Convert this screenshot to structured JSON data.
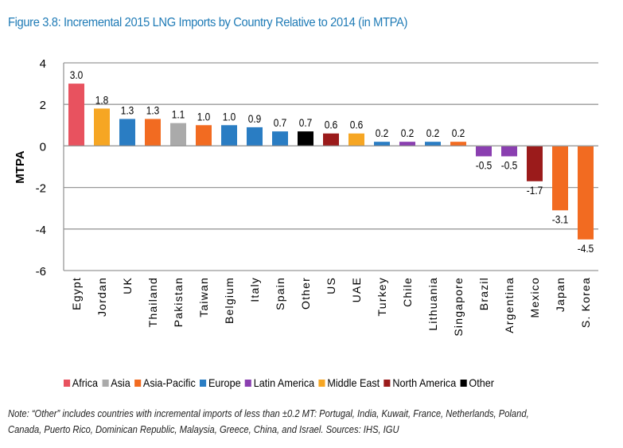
{
  "chart_data": {
    "type": "bar",
    "title": "Figure 3.8: Incremental 2015 LNG Imports by Country Relative to 2014 (in MTPA)",
    "ylabel": "MTPA",
    "ylim": [
      -6,
      4
    ],
    "yticks": [
      "4",
      "2",
      "0",
      "-2",
      "-4",
      "-6"
    ],
    "grid": true,
    "legend_position": "bottom",
    "categories": [
      "Egypt",
      "Jordan",
      "UK",
      "Thailand",
      "Pakistan",
      "Taiwan",
      "Belgium",
      "Italy",
      "Spain",
      "Other",
      "US",
      "UAE",
      "Turkey",
      "Chile",
      "Lithuania",
      "Singapore",
      "Brazil",
      "Argentina",
      "Mexico",
      "Japan",
      "S. Korea"
    ],
    "values": [
      3.0,
      1.8,
      1.3,
      1.3,
      1.1,
      1.0,
      1.0,
      0.9,
      0.7,
      0.7,
      0.6,
      0.6,
      0.2,
      0.2,
      0.2,
      0.2,
      -0.5,
      -0.5,
      -1.7,
      -3.1,
      -4.5
    ],
    "value_labels": [
      "3.0",
      "1.8",
      "1.3",
      "1.3",
      "1.1",
      "1.0",
      "1.0",
      "0.9",
      "0.7",
      "0.7",
      "0.6",
      "0.6",
      "0.2",
      "0.2",
      "0.2",
      "0.2",
      "-0.5",
      "-0.5",
      "-1.7",
      "-3.1",
      "-4.5"
    ],
    "regions": [
      "Africa",
      "Middle East",
      "Europe",
      "Asia-Pacific",
      "Asia",
      "Asia-Pacific",
      "Europe",
      "Europe",
      "Europe",
      "Other",
      "North America",
      "Middle East",
      "Europe",
      "Latin America",
      "Europe",
      "Asia-Pacific",
      "Latin America",
      "Latin America",
      "North America",
      "Asia-Pacific",
      "Asia-Pacific"
    ],
    "legend": [
      {
        "name": "Africa",
        "color": "#e8525f"
      },
      {
        "name": "Asia",
        "color": "#aaaaaa"
      },
      {
        "name": "Asia-Pacific",
        "color": "#f26b21"
      },
      {
        "name": "Europe",
        "color": "#2a7dc3"
      },
      {
        "name": "Latin America",
        "color": "#8a3fb0"
      },
      {
        "name": "Middle East",
        "color": "#f6a623"
      },
      {
        "name": "North America",
        "color": "#9b1b1b"
      },
      {
        "name": "Other",
        "color": "#000000"
      }
    ]
  },
  "note": "Note: “Other” includes countries with incremental imports of less than ±0.2 MT: Portugal, India, Kuwait, France, Netherlands, Poland, Canada, Puerto Rico, Dominican Republic, Malaysia, Greece, China, and Israel. Sources: IHS, IGU"
}
